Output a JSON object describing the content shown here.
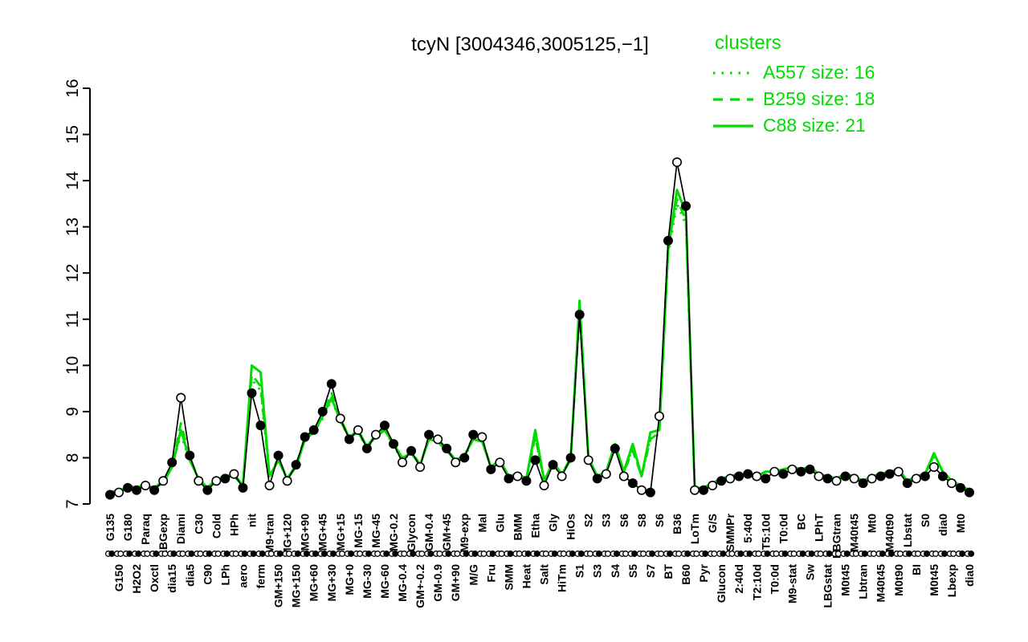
{
  "colors": {
    "cluster": "#00DC00",
    "gene": "#000000",
    "background": "#FFFFFF"
  },
  "legend": {
    "title": "clusters",
    "entries": [
      {
        "label": "A557 size: 16",
        "style": "dotted"
      },
      {
        "label": "B259 size: 18",
        "style": "dashed"
      },
      {
        "label": "C88 size: 21",
        "style": "solid"
      }
    ]
  },
  "chart_data": {
    "type": "line",
    "title": "tcyN [3004346,3005125,−1]",
    "xlabel": "",
    "ylabel": "",
    "ylim": [
      7,
      16
    ],
    "yticks": [
      7,
      8,
      9,
      10,
      11,
      12,
      13,
      14,
      15,
      16
    ],
    "grid": false,
    "legend_position": "top-right",
    "categories": [
      "G135",
      "G150",
      "G180",
      "H2O2",
      "Paraq",
      "Oxctl",
      "LBGexp",
      "dia15",
      "Diami",
      "dia5",
      "C30",
      "C90",
      "Cold",
      "LPh",
      "HPh",
      "aero",
      "nit",
      "ferm",
      "M9-tran",
      "GM+150",
      "MG+120",
      "MG+150",
      "MG+90",
      "MG+60",
      "MG+45",
      "MG+30",
      "MG+15",
      "MG+0",
      "MG-15",
      "MG-30",
      "MG-45",
      "MG-60",
      "MG-0.2",
      "MG-0.4",
      "Glycon",
      "GM+-0.2",
      "GM-0.4",
      "GM-0.9",
      "GM+45",
      "GM+90",
      "M9-exp",
      "M/G",
      "Mal",
      "Fru",
      "Glu",
      "SMM",
      "BMM",
      "Heat",
      "Etha",
      "Salt",
      "Gly",
      "HiTm",
      "HiOs",
      "S1",
      "S2",
      "S3",
      "S3",
      "S4",
      "S6",
      "S5",
      "S8",
      "S7",
      "S6",
      "BT",
      "B36",
      "B60",
      "LoTm",
      "Pyr",
      "G/S",
      "Glucon",
      "SMMPr",
      "2:40d",
      "5:40d",
      "T2:10d",
      "T5:10d",
      "T0:0d",
      "T0:0d",
      "M9-stat",
      "BC",
      "Sw",
      "LPhT",
      "LBGstat",
      "LBGtran",
      "M0t45",
      "M40t45",
      "Lbtran",
      "Mt0",
      "M40t45",
      "M40t90",
      "M0t90",
      "Lbstat",
      "BI",
      "S0",
      "M0t45",
      "dia0",
      "Lbexp",
      "Mt0",
      "dia0"
    ],
    "gene_series": {
      "name": "tcyN",
      "values": [
        7.2,
        7.25,
        7.35,
        7.3,
        7.4,
        7.3,
        7.5,
        7.9,
        9.3,
        8.05,
        7.5,
        7.3,
        7.5,
        7.55,
        7.65,
        7.35,
        9.4,
        8.7,
        7.4,
        8.05,
        7.5,
        7.85,
        8.45,
        8.6,
        9.0,
        9.6,
        8.85,
        8.4,
        8.6,
        8.2,
        8.5,
        8.7,
        8.3,
        7.9,
        8.15,
        7.8,
        8.5,
        8.4,
        8.2,
        7.9,
        8.0,
        8.5,
        8.45,
        7.75,
        7.9,
        7.55,
        7.6,
        7.5,
        7.95,
        7.4,
        7.85,
        7.6,
        8.0,
        11.1,
        7.95,
        7.55,
        7.65,
        8.2,
        7.6,
        7.45,
        7.3,
        7.25,
        8.9,
        12.7,
        14.4,
        13.45,
        7.3,
        7.3,
        7.4,
        7.5,
        7.55,
        7.6,
        7.65,
        7.6,
        7.55,
        7.7,
        7.65,
        7.75,
        7.7,
        7.75,
        7.6,
        7.55,
        7.5,
        7.6,
        7.55,
        7.45,
        7.55,
        7.6,
        7.65,
        7.7,
        7.45,
        7.55,
        7.6,
        7.8,
        7.6,
        7.45,
        7.35,
        7.25
      ],
      "marker_filled": [
        1,
        0,
        1,
        1,
        0,
        1,
        0,
        1,
        0,
        1,
        0,
        1,
        0,
        1,
        0,
        1,
        1,
        1,
        0,
        1,
        0,
        1,
        1,
        1,
        1,
        1,
        0,
        1,
        0,
        1,
        0,
        1,
        1,
        0,
        1,
        0,
        1,
        0,
        1,
        0,
        1,
        1,
        0,
        1,
        0,
        1,
        0,
        1,
        1,
        0,
        1,
        0,
        1,
        1,
        0,
        1,
        0,
        1,
        0,
        1,
        0,
        1,
        0,
        1,
        0,
        1,
        0,
        1,
        0,
        1,
        0,
        1,
        1,
        0,
        1,
        0,
        1,
        0,
        1,
        1,
        0,
        1,
        0,
        1,
        0,
        1,
        0,
        1,
        1,
        0,
        1,
        0,
        1,
        0,
        1,
        0,
        1,
        1
      ]
    },
    "series": [
      {
        "name": "A557",
        "size": 16,
        "style": "dotted",
        "values": [
          7.25,
          7.3,
          7.35,
          7.35,
          7.4,
          7.35,
          7.45,
          7.8,
          8.5,
          7.95,
          7.55,
          7.35,
          7.5,
          7.6,
          7.6,
          7.4,
          9.7,
          9.45,
          7.6,
          7.95,
          7.55,
          7.8,
          8.4,
          8.55,
          8.85,
          9.25,
          8.8,
          8.4,
          8.55,
          8.2,
          8.45,
          8.6,
          8.25,
          7.95,
          8.1,
          7.85,
          8.4,
          8.35,
          8.15,
          7.95,
          8.0,
          8.4,
          8.35,
          7.8,
          7.9,
          7.6,
          7.65,
          7.55,
          8.5,
          7.5,
          7.9,
          7.65,
          7.95,
          11.15,
          8.0,
          7.6,
          7.7,
          8.25,
          7.7,
          8.2,
          7.6,
          8.45,
          8.5,
          12.4,
          13.5,
          13.05,
          7.35,
          7.35,
          7.45,
          7.55,
          7.6,
          7.65,
          7.6,
          7.6,
          7.7,
          7.7,
          7.75,
          7.8,
          7.75,
          7.8,
          7.65,
          7.6,
          7.55,
          7.65,
          7.6,
          7.5,
          7.6,
          7.65,
          7.7,
          7.75,
          7.5,
          7.6,
          7.65,
          8.05,
          7.7,
          7.5,
          7.4,
          7.3
        ]
      },
      {
        "name": "B259",
        "size": 18,
        "style": "dashed",
        "values": [
          7.25,
          7.3,
          7.4,
          7.35,
          7.45,
          7.35,
          7.5,
          7.85,
          8.75,
          8.0,
          7.55,
          7.35,
          7.55,
          7.6,
          7.65,
          7.4,
          9.8,
          9.55,
          7.6,
          8.0,
          7.55,
          7.85,
          8.45,
          8.6,
          8.95,
          9.4,
          8.85,
          8.45,
          8.6,
          8.25,
          8.5,
          8.65,
          8.3,
          7.95,
          8.15,
          7.85,
          8.45,
          8.4,
          8.2,
          7.95,
          8.05,
          8.45,
          8.4,
          7.8,
          7.95,
          7.6,
          7.65,
          7.55,
          8.45,
          7.5,
          7.9,
          7.65,
          8.0,
          11.25,
          8.0,
          7.6,
          7.7,
          8.25,
          7.7,
          8.15,
          7.6,
          8.4,
          8.55,
          12.55,
          13.6,
          13.15,
          7.35,
          7.35,
          7.45,
          7.55,
          7.6,
          7.65,
          7.6,
          7.6,
          7.7,
          7.7,
          7.75,
          7.8,
          7.75,
          7.8,
          7.65,
          7.6,
          7.55,
          7.65,
          7.6,
          7.5,
          7.6,
          7.65,
          7.7,
          7.75,
          7.5,
          7.6,
          7.65,
          8.05,
          7.7,
          7.5,
          7.4,
          7.3
        ]
      },
      {
        "name": "C88",
        "size": 21,
        "style": "solid",
        "values": [
          7.25,
          7.3,
          7.35,
          7.35,
          7.4,
          7.35,
          7.45,
          7.8,
          8.6,
          7.95,
          7.55,
          7.35,
          7.5,
          7.6,
          7.6,
          7.4,
          10.0,
          9.85,
          7.6,
          7.95,
          7.55,
          7.8,
          8.4,
          8.55,
          8.9,
          9.3,
          8.8,
          8.45,
          8.55,
          8.25,
          8.45,
          8.6,
          8.3,
          8.0,
          8.1,
          7.85,
          8.4,
          8.35,
          8.15,
          7.95,
          8.05,
          8.4,
          8.35,
          7.8,
          7.95,
          7.6,
          7.65,
          7.55,
          8.6,
          7.5,
          7.9,
          7.65,
          7.95,
          11.4,
          8.0,
          7.6,
          7.7,
          8.3,
          7.7,
          8.3,
          7.6,
          8.55,
          8.6,
          12.5,
          13.8,
          13.3,
          7.35,
          7.35,
          7.45,
          7.55,
          7.6,
          7.65,
          7.6,
          7.6,
          7.7,
          7.7,
          7.75,
          7.8,
          7.75,
          7.8,
          7.65,
          7.6,
          7.55,
          7.65,
          7.6,
          7.5,
          7.6,
          7.65,
          7.7,
          7.75,
          7.5,
          7.6,
          7.65,
          8.1,
          7.7,
          7.5,
          7.4,
          7.3
        ]
      }
    ]
  }
}
